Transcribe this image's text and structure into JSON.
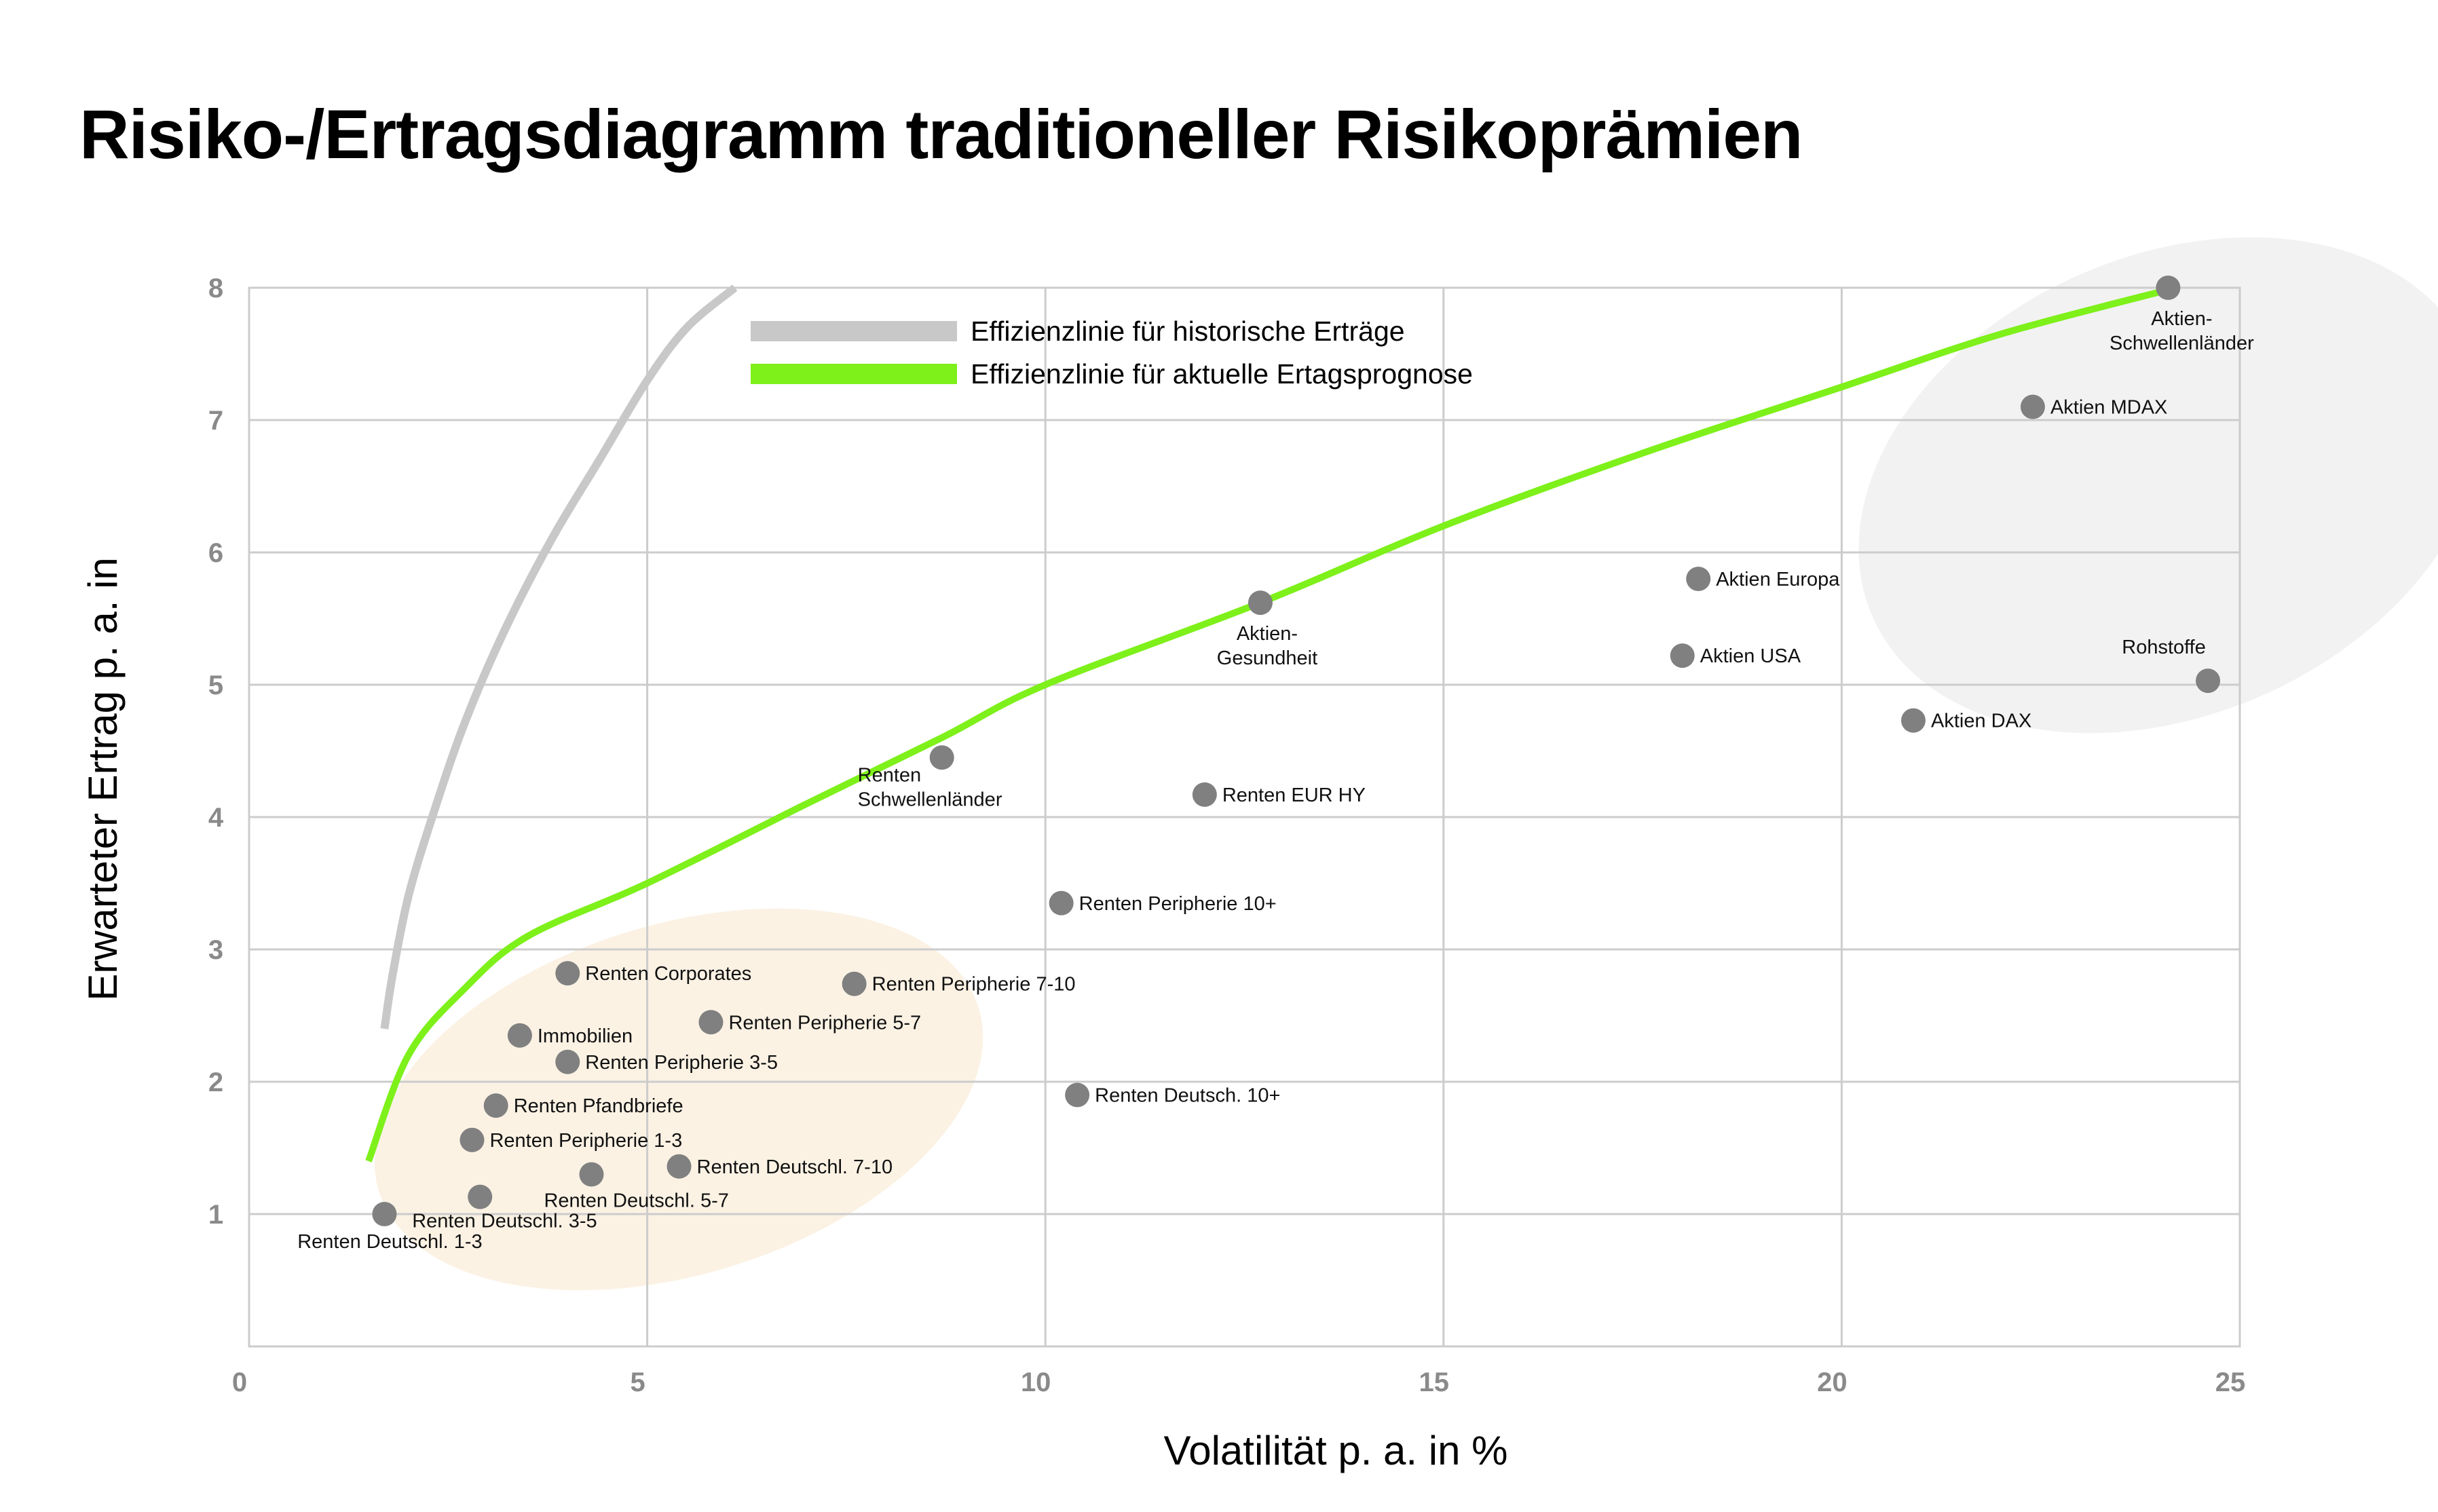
{
  "chart_data": {
    "type": "scatter",
    "title": "Risiko-/Ertragsdiagramm traditioneller Risikoprämien",
    "xlabel": "Volatilität p. a. in %",
    "ylabel": "Erwarteter Ertrag p. a. in",
    "xlim": [
      0,
      25
    ],
    "ylim": [
      0,
      8
    ],
    "x_ticks": [
      "0",
      "5",
      "10",
      "15",
      "20",
      "25"
    ],
    "y_ticks": [
      "1",
      "2",
      "3",
      "4",
      "5",
      "6",
      "7",
      "8"
    ],
    "grid": true,
    "legend_position": "top",
    "colors": {
      "point": "#808080",
      "historical_line": "#c8c8c8",
      "forecast_line": "#7ef01a",
      "equity_cluster": "#f2f2f2",
      "bond_cluster": "#fbf2e4",
      "grid": "#cccccc"
    },
    "series": [
      {
        "name": "Effizienzlinie für historische Erträge",
        "type": "line",
        "x": [
          1.7,
          1.8,
          2.0,
          2.3,
          2.7,
          3.2,
          3.8,
          4.4,
          5.0,
          5.5,
          6.1
        ],
        "y": [
          2.4,
          2.8,
          3.4,
          4.0,
          4.7,
          5.4,
          6.1,
          6.7,
          7.3,
          7.7,
          8.0
        ]
      },
      {
        "name": "Effizienzlinie für aktuelle Ertagsprognose",
        "type": "line",
        "x": [
          1.5,
          2.0,
          2.7,
          3.5,
          5.0,
          7.0,
          8.7,
          10.0,
          12.7,
          15.0,
          17.5,
          20.0,
          22.0,
          24.2
        ],
        "y": [
          1.4,
          2.2,
          2.7,
          3.1,
          3.5,
          4.1,
          4.6,
          5.0,
          5.62,
          6.2,
          6.75,
          7.25,
          7.65,
          8.0
        ]
      }
    ],
    "points": [
      {
        "label": "Renten Deutschl. 1-3",
        "x": 1.7,
        "y": 1.0
      },
      {
        "label": "Renten Deutschl. 3-5",
        "x": 2.9,
        "y": 1.13
      },
      {
        "label": "Renten Deutschl. 5-7",
        "x": 4.3,
        "y": 1.3
      },
      {
        "label": "Renten Deutschl. 7-10",
        "x": 5.4,
        "y": 1.36
      },
      {
        "label": "Renten Peripherie 1-3",
        "x": 2.8,
        "y": 1.56
      },
      {
        "label": "Renten Pfandbriefe",
        "x": 3.1,
        "y": 1.82
      },
      {
        "label": "Immobilien",
        "x": 3.4,
        "y": 2.35
      },
      {
        "label": "Renten Peripherie 3-5",
        "x": 4.0,
        "y": 2.15
      },
      {
        "label": "Renten Corporates",
        "x": 4.0,
        "y": 2.82
      },
      {
        "label": "Renten Peripherie 5-7",
        "x": 5.8,
        "y": 2.45
      },
      {
        "label": "Renten Peripherie 7-10",
        "x": 7.6,
        "y": 2.74
      },
      {
        "label": "Renten Schwellenländer",
        "x": 8.7,
        "y": 4.45
      },
      {
        "label": "Renten Peripherie 10+",
        "x": 10.2,
        "y": 3.35
      },
      {
        "label": "Renten Deutsch. 10+",
        "x": 10.4,
        "y": 1.9
      },
      {
        "label": "Renten EUR HY",
        "x": 12.0,
        "y": 4.17
      },
      {
        "label": "Aktien- Gesundheit",
        "x": 12.7,
        "y": 5.62
      },
      {
        "label": "Aktien USA",
        "x": 18.0,
        "y": 5.22
      },
      {
        "label": "Aktien Europa",
        "x": 18.2,
        "y": 5.8
      },
      {
        "label": "Aktien DAX",
        "x": 20.9,
        "y": 4.73
      },
      {
        "label": "Aktien MDAX",
        "x": 22.4,
        "y": 7.1
      },
      {
        "label": "Aktien- Schwellenländer",
        "x": 24.1,
        "y": 8.0
      },
      {
        "label": "Rohstoffe",
        "x": 24.6,
        "y": 5.03
      }
    ]
  }
}
